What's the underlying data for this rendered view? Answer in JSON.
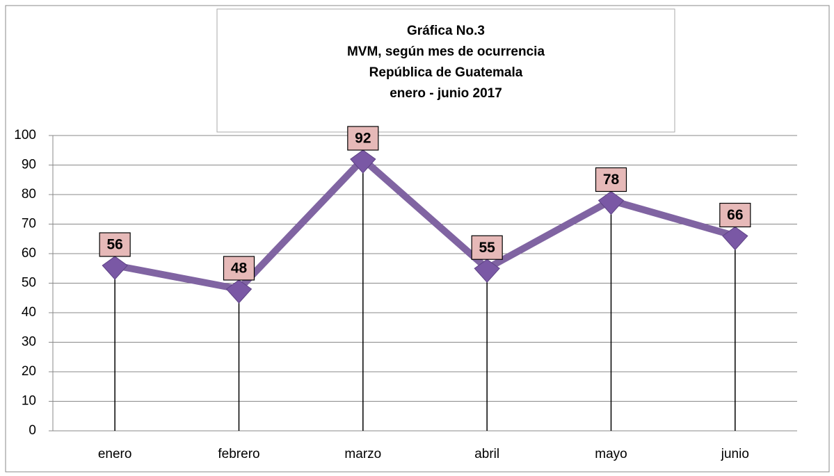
{
  "chart_data": {
    "type": "line",
    "title": [
      "Gráfica No.3",
      "MVM, según mes de ocurrencia",
      "República de Guatemala",
      "enero - junio 2017"
    ],
    "categories": [
      "enero",
      "febrero",
      "marzo",
      "abril",
      "mayo",
      "junio"
    ],
    "values": [
      56,
      48,
      92,
      55,
      78,
      66
    ],
    "color": "#8064a2",
    "ylim": [
      0,
      100
    ],
    "yticks": [
      0,
      10,
      20,
      30,
      40,
      50,
      60,
      70,
      80,
      90,
      100
    ],
    "grid": true
  }
}
